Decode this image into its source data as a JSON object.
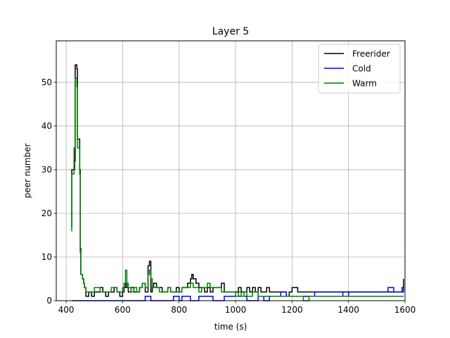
{
  "chart_data": {
    "type": "line",
    "title": "Layer 5",
    "xlabel": "time (s)",
    "ylabel": "peer number",
    "xlim": [
      365,
      1600
    ],
    "ylim": [
      0,
      59.5
    ],
    "xticks": [
      400,
      600,
      800,
      1000,
      1200,
      1400,
      1600
    ],
    "yticks": [
      0,
      10,
      20,
      30,
      40,
      50
    ],
    "grid": true,
    "legend_position": "top-right",
    "series": [
      {
        "name": "Freerider",
        "color": "#000000",
        "x": [
          418,
          420,
          430,
          432,
          438,
          440,
          448,
          450,
          452,
          458,
          462,
          465,
          470,
          480,
          490,
          500,
          510,
          520,
          530,
          540,
          550,
          560,
          570,
          580,
          590,
          600,
          605,
          610,
          615,
          620,
          630,
          640,
          650,
          660,
          670,
          680,
          690,
          695,
          700,
          705,
          710,
          720,
          730,
          740,
          750,
          760,
          770,
          780,
          790,
          800,
          810,
          820,
          830,
          840,
          845,
          850,
          860,
          870,
          880,
          890,
          900,
          910,
          920,
          930,
          940,
          950,
          960,
          970,
          980,
          990,
          1000,
          1010,
          1020,
          1030,
          1040,
          1050,
          1060,
          1070,
          1080,
          1090,
          1100,
          1110,
          1120,
          1140,
          1160,
          1180,
          1190,
          1200,
          1220,
          1240,
          1260,
          1280,
          1300,
          1320,
          1340,
          1360,
          1380,
          1400,
          1420,
          1440,
          1460,
          1480,
          1500,
          1520,
          1540,
          1560,
          1580,
          1590,
          1595
        ],
        "y": [
          17,
          30,
          32,
          54,
          53,
          37,
          30,
          12,
          6,
          5,
          4,
          3,
          1,
          2,
          1,
          2,
          2,
          3,
          2,
          1,
          2,
          2,
          3,
          2,
          1,
          2,
          3,
          4,
          3,
          2,
          3,
          2,
          2,
          3,
          4,
          2,
          8,
          9,
          2,
          3,
          4,
          3,
          3,
          2,
          2,
          3,
          2,
          2,
          3,
          2,
          3,
          3,
          4,
          5,
          6,
          5,
          4,
          3,
          3,
          2,
          3,
          2,
          3,
          3,
          3,
          4,
          2,
          2,
          2,
          2,
          2,
          3,
          2,
          2,
          3,
          2,
          3,
          2,
          3,
          2,
          2,
          3,
          2,
          2,
          2,
          1,
          2,
          3,
          2,
          2,
          2,
          2,
          2,
          2,
          2,
          2,
          2,
          2,
          2,
          2,
          2,
          2,
          2,
          2,
          2,
          2,
          2,
          3,
          5
        ]
      },
      {
        "name": "Cold",
        "color": "#0000ff",
        "x": [
          420,
          600,
          680,
          690,
          700,
          780,
          800,
          810,
          840,
          870,
          900,
          920,
          960,
          1000,
          1040,
          1080,
          1100,
          1120,
          1140,
          1160,
          1180,
          1200,
          1240,
          1260,
          1280,
          1300,
          1320,
          1340,
          1360,
          1380,
          1400,
          1420,
          1440,
          1460,
          1480,
          1500,
          1520,
          1540,
          1560,
          1580,
          1595
        ],
        "y": [
          0,
          0,
          1,
          1,
          0,
          1,
          0,
          1,
          0,
          1,
          1,
          0,
          1,
          1,
          0,
          1,
          0,
          1,
          1,
          2,
          1,
          1,
          1,
          1,
          2,
          2,
          2,
          2,
          2,
          1,
          2,
          2,
          2,
          2,
          2,
          2,
          2,
          3,
          2,
          2,
          3
        ]
      },
      {
        "name": "Warm",
        "color": "#008000",
        "x": [
          418,
          420,
          428,
          432,
          438,
          440,
          448,
          450,
          452,
          458,
          462,
          465,
          470,
          480,
          490,
          500,
          510,
          520,
          530,
          540,
          550,
          560,
          570,
          580,
          590,
          600,
          605,
          610,
          615,
          620,
          630,
          640,
          650,
          660,
          670,
          680,
          690,
          695,
          700,
          705,
          710,
          720,
          730,
          740,
          750,
          760,
          770,
          780,
          790,
          800,
          810,
          820,
          830,
          840,
          850,
          860,
          870,
          880,
          890,
          900,
          910,
          920,
          930,
          940,
          950,
          960,
          970,
          980,
          990,
          1000,
          1010,
          1020,
          1030,
          1040,
          1060,
          1080,
          1100,
          1120,
          1140,
          1160,
          1180,
          1200,
          1220,
          1240,
          1260,
          1280,
          1300,
          1320,
          1340,
          1360,
          1380,
          1400,
          1420,
          1440,
          1460,
          1480,
          1500,
          1520,
          1540,
          1560,
          1580,
          1595
        ],
        "y": [
          16,
          29,
          35,
          51,
          49,
          35,
          29,
          11,
          6,
          5,
          4,
          3,
          2,
          2,
          2,
          3,
          3,
          2,
          2,
          2,
          2,
          3,
          3,
          2,
          2,
          3,
          4,
          7,
          4,
          3,
          2,
          3,
          2,
          3,
          4,
          3,
          6,
          7,
          5,
          3,
          3,
          3,
          2,
          2,
          2,
          3,
          2,
          2,
          2,
          2,
          3,
          3,
          3,
          4,
          3,
          3,
          2,
          3,
          3,
          4,
          3,
          3,
          3,
          3,
          2,
          2,
          2,
          2,
          2,
          1,
          2,
          1,
          2,
          1,
          2,
          1,
          1,
          1,
          1,
          1,
          1,
          1,
          1,
          0,
          1,
          1,
          1,
          1,
          1,
          1,
          1,
          1,
          1,
          1,
          1,
          1,
          1,
          1,
          1,
          1,
          1,
          1
        ]
      }
    ]
  }
}
